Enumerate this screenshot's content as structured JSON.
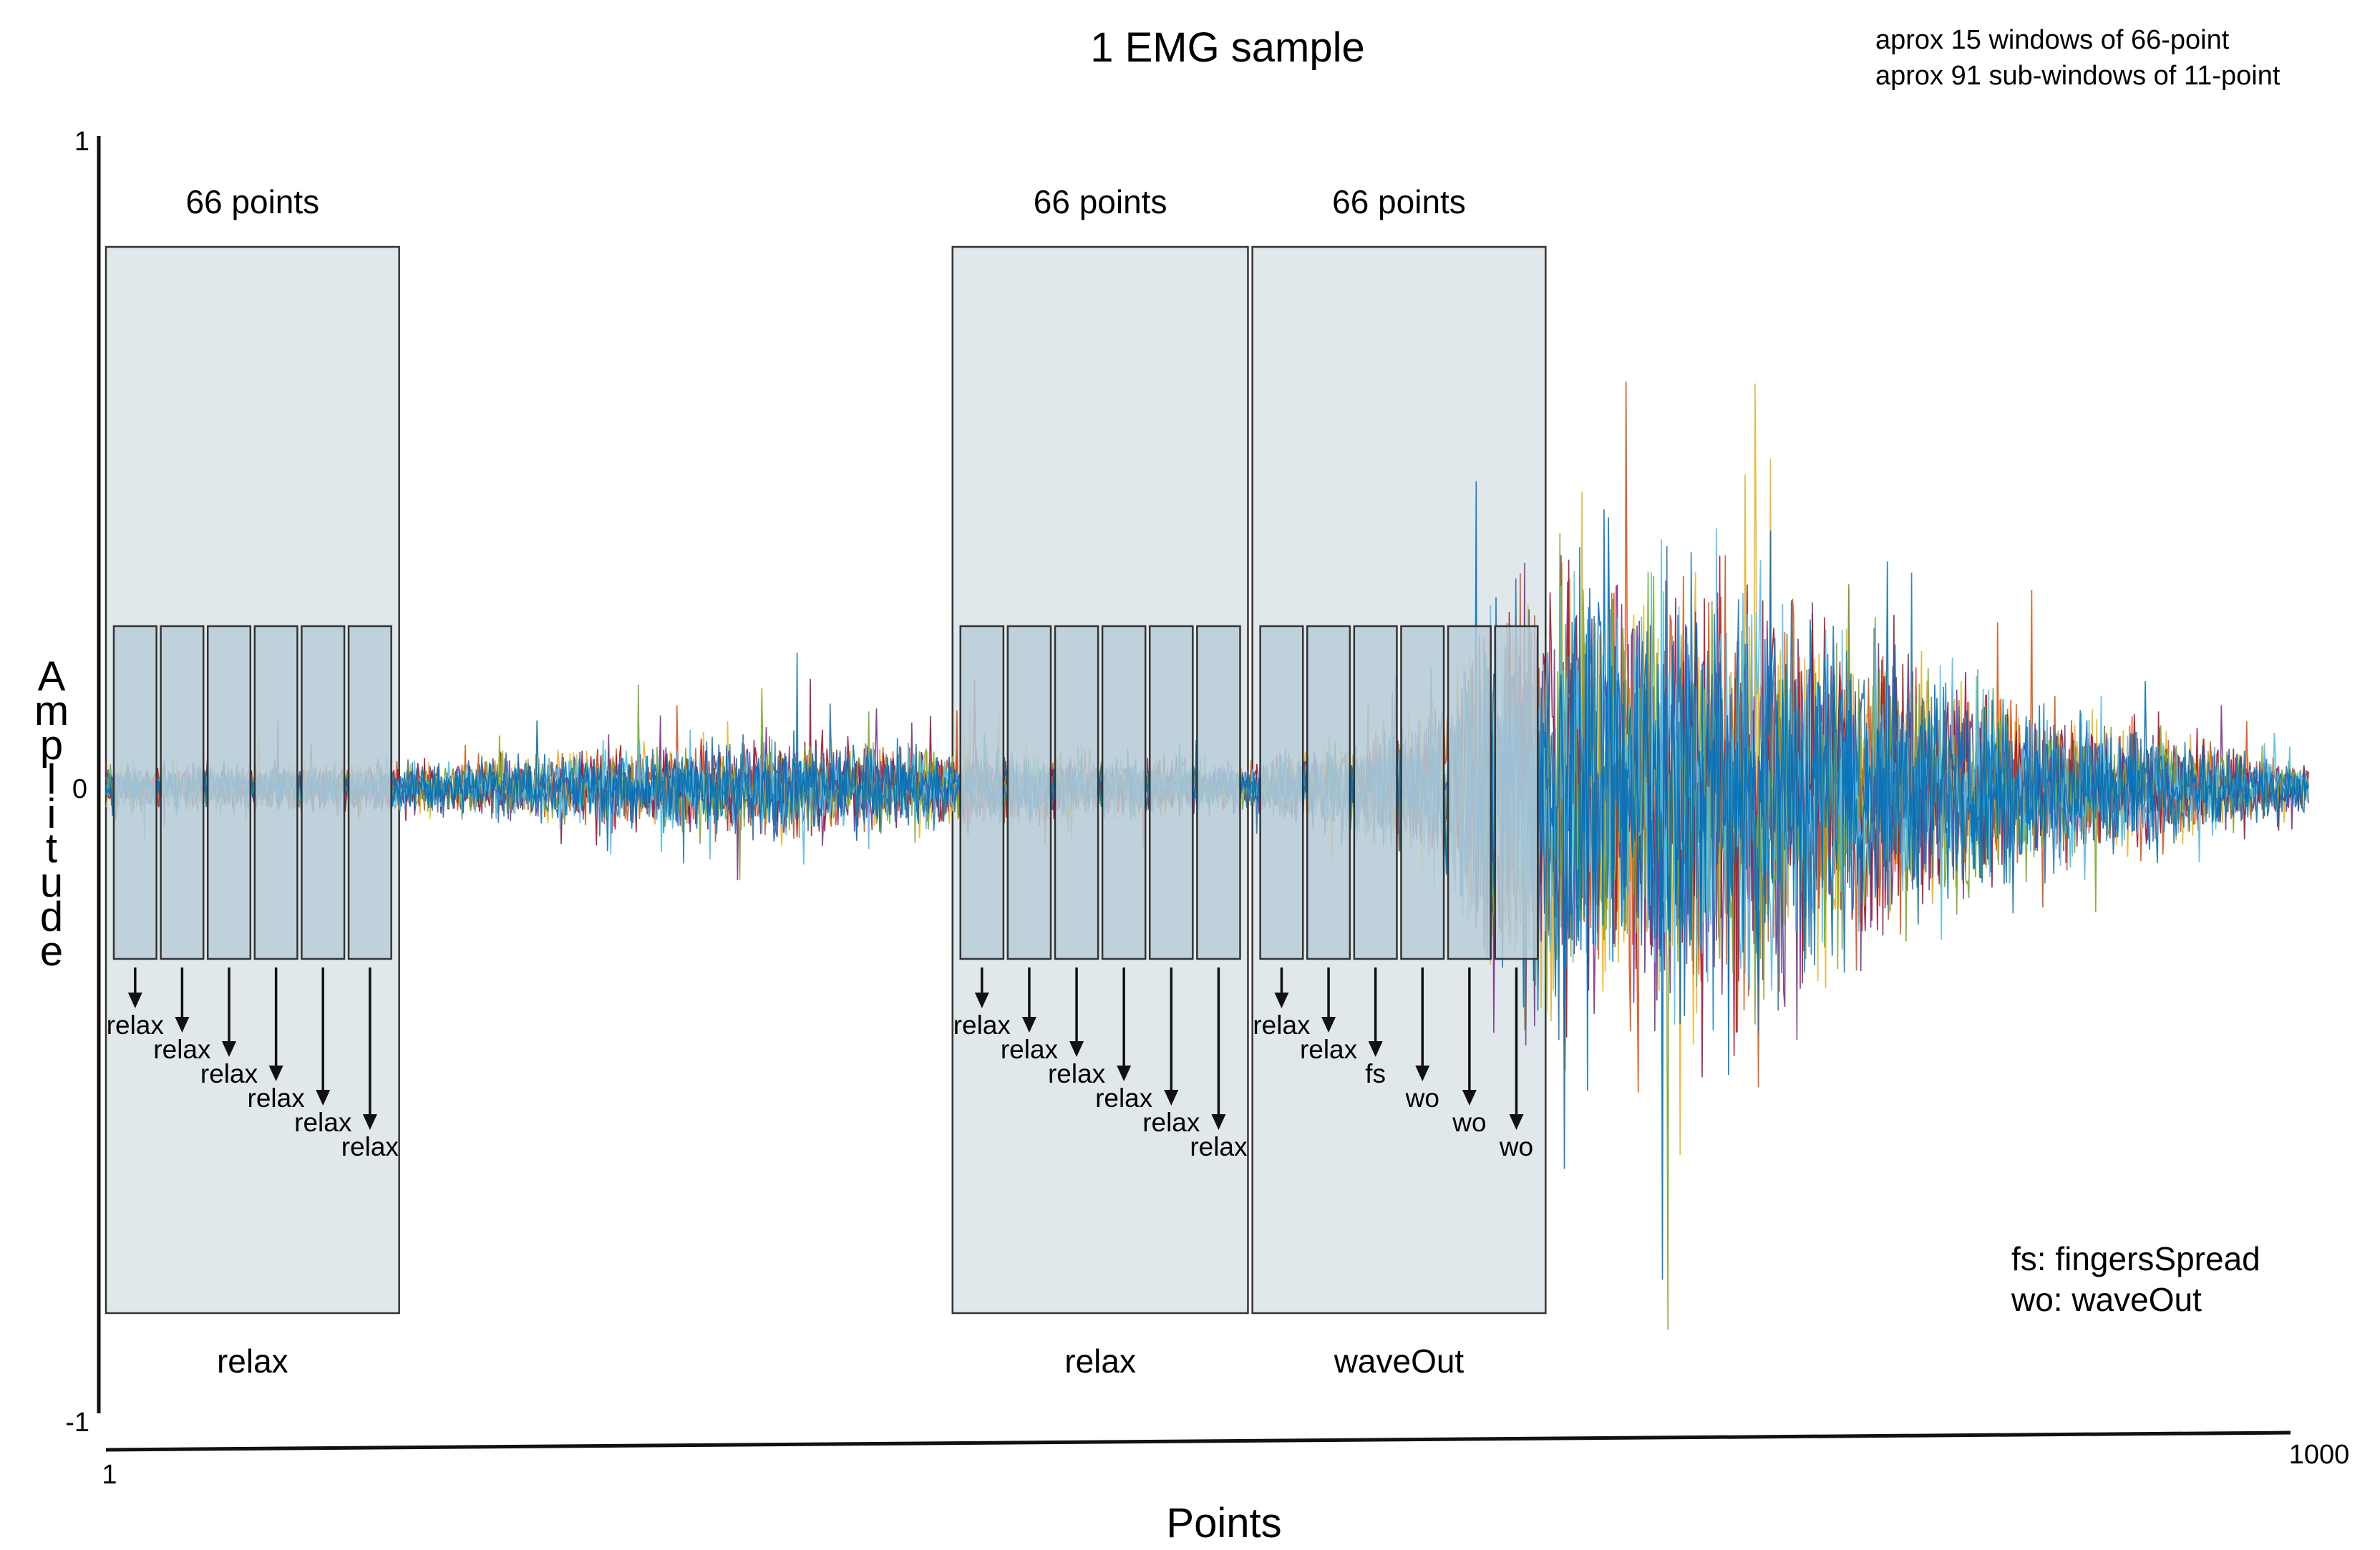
{
  "chart_data": {
    "type": "line",
    "title": "1 EMG sample",
    "notes": [
      "aprox 15 windows of 66-point",
      "aprox 91 sub-windows of 11-point"
    ],
    "xlabel": "Points",
    "ylabel": "Amplitude",
    "xlim": [
      1,
      1000
    ],
    "ylim": [
      -1,
      1
    ],
    "x_ticks": [
      "1",
      "1000"
    ],
    "y_ticks": [
      "1",
      "0",
      "-1"
    ],
    "channels": 8,
    "series_colors": [
      "#0072bd",
      "#d95319",
      "#edb120",
      "#7e2f8e",
      "#77ac30",
      "#4dbeee",
      "#a2142f",
      "#1f77b4"
    ],
    "windows": [
      {
        "header": "66 points",
        "range": [
          1,
          134
        ],
        "label": "relax",
        "subwindow_labels": [
          "relax",
          "relax",
          "relax",
          "relax",
          "relax",
          "relax"
        ]
      },
      {
        "header": "66 points",
        "range": [
          385,
          519
        ],
        "label": "relax",
        "subwindow_labels": [
          "relax",
          "relax",
          "relax",
          "relax",
          "relax",
          "relax"
        ]
      },
      {
        "header": "66 points",
        "range": [
          521,
          654
        ],
        "label": "waveOut",
        "subwindow_labels": [
          "relax",
          "relax",
          "fs",
          "wo",
          "wo",
          "wo"
        ]
      }
    ],
    "signal_envelope": [
      {
        "x": 1,
        "amplitude": 0.08
      },
      {
        "x": 134,
        "amplitude": 0.09
      },
      {
        "x": 300,
        "amplitude": 0.18
      },
      {
        "x": 520,
        "amplitude": 0.08
      },
      {
        "x": 600,
        "amplitude": 0.25
      },
      {
        "x": 640,
        "amplitude": 0.8
      },
      {
        "x": 740,
        "amplitude": 0.85
      },
      {
        "x": 800,
        "amplitude": 0.55
      },
      {
        "x": 880,
        "amplitude": 0.3
      },
      {
        "x": 1000,
        "amplitude": 0.08
      }
    ],
    "legend": [
      "fs:  fingersSpread",
      "wo: waveOut"
    ],
    "legend_position": "lower-right"
  },
  "colors": {
    "window_fill": "#e0e8ec",
    "subwindow_fill": "#b8cdd7",
    "stroke": "#111111"
  }
}
